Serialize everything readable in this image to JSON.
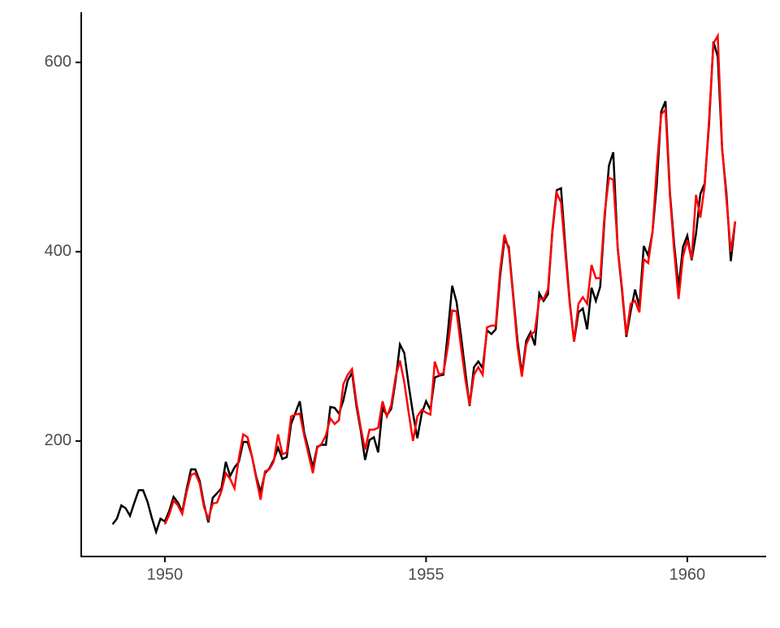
{
  "chart_data": {
    "type": "line",
    "xlim": [
      1948.4,
      1961.51
    ],
    "ylim": [
      78,
      653
    ],
    "xticks": [
      1950,
      1955,
      1960
    ],
    "yticks": [
      200,
      400,
      600
    ],
    "series": [
      {
        "color": "#000000",
        "x": [
          1949,
          1949.083,
          1949.167,
          1949.25,
          1949.333,
          1949.417,
          1949.5,
          1949.583,
          1949.667,
          1949.75,
          1949.833,
          1949.917,
          1950,
          1950.083,
          1950.167,
          1950.25,
          1950.333,
          1950.417,
          1950.5,
          1950.583,
          1950.667,
          1950.75,
          1950.833,
          1950.917,
          1951,
          1951.083,
          1951.167,
          1951.25,
          1951.333,
          1951.417,
          1951.5,
          1951.583,
          1951.667,
          1951.75,
          1951.833,
          1951.917,
          1952,
          1952.083,
          1952.167,
          1952.25,
          1952.333,
          1952.417,
          1952.5,
          1952.583,
          1952.667,
          1952.75,
          1952.833,
          1952.917,
          1953,
          1953.083,
          1953.167,
          1953.25,
          1953.333,
          1953.417,
          1953.5,
          1953.583,
          1953.667,
          1953.75,
          1953.833,
          1953.917,
          1954,
          1954.083,
          1954.167,
          1954.25,
          1954.333,
          1954.417,
          1954.5,
          1954.583,
          1954.667,
          1954.75,
          1954.833,
          1954.917,
          1955,
          1955.083,
          1955.167,
          1955.25,
          1955.333,
          1955.417,
          1955.5,
          1955.583,
          1955.667,
          1955.75,
          1955.833,
          1955.917,
          1956,
          1956.083,
          1956.167,
          1956.25,
          1956.333,
          1956.417,
          1956.5,
          1956.583,
          1956.667,
          1956.75,
          1956.833,
          1956.917,
          1957,
          1957.083,
          1957.167,
          1957.25,
          1957.333,
          1957.417,
          1957.5,
          1957.583,
          1957.667,
          1957.75,
          1957.833,
          1957.917,
          1958,
          1958.083,
          1958.167,
          1958.25,
          1958.333,
          1958.417,
          1958.5,
          1958.583,
          1958.667,
          1958.75,
          1958.833,
          1958.917,
          1959,
          1959.083,
          1959.167,
          1959.25,
          1959.333,
          1959.417,
          1959.5,
          1959.583,
          1959.667,
          1959.75,
          1959.833,
          1959.917,
          1960,
          1960.083,
          1960.167,
          1960.25,
          1960.333,
          1960.417,
          1960.5,
          1960.583,
          1960.667,
          1960.75,
          1960.833,
          1960.917
        ],
        "values": [
          112,
          118,
          132,
          129,
          121,
          135,
          148,
          148,
          136,
          119,
          104,
          118,
          115,
          126,
          141,
          135,
          125,
          149,
          170,
          170,
          158,
          133,
          114,
          140,
          145,
          150,
          178,
          163,
          172,
          178,
          199,
          199,
          184,
          162,
          146,
          166,
          171,
          180,
          193,
          181,
          183,
          218,
          230,
          242,
          209,
          191,
          172,
          194,
          196,
          196,
          236,
          235,
          229,
          243,
          264,
          272,
          237,
          211,
          180,
          201,
          204,
          188,
          235,
          227,
          234,
          264,
          302,
          293,
          259,
          229,
          203,
          229,
          242,
          233,
          267,
          269,
          270,
          315,
          364,
          347,
          312,
          274,
          237,
          278,
          284,
          277,
          317,
          313,
          318,
          374,
          413,
          405,
          355,
          306,
          271,
          306,
          315,
          301,
          356,
          348,
          355,
          422,
          465,
          467,
          404,
          347,
          305,
          336,
          340,
          318,
          362,
          348,
          363,
          435,
          491,
          505,
          404,
          359,
          310,
          337,
          360,
          342,
          406,
          396,
          420,
          472,
          548,
          559,
          463,
          407,
          362,
          405,
          417,
          391,
          419,
          461,
          472,
          535,
          622,
          606,
          508,
          461,
          390,
          432
        ]
      },
      {
        "color": "#ff0000",
        "x": [
          1950,
          1950.083,
          1950.167,
          1950.25,
          1950.333,
          1950.417,
          1950.5,
          1950.583,
          1950.667,
          1950.75,
          1950.833,
          1950.917,
          1951,
          1951.083,
          1951.167,
          1951.25,
          1951.333,
          1951.417,
          1951.5,
          1951.583,
          1951.667,
          1951.75,
          1951.833,
          1951.917,
          1952,
          1952.083,
          1952.167,
          1952.25,
          1952.333,
          1952.417,
          1952.5,
          1952.583,
          1952.667,
          1952.75,
          1952.833,
          1952.917,
          1953,
          1953.083,
          1953.167,
          1953.25,
          1953.333,
          1953.417,
          1953.5,
          1953.583,
          1953.667,
          1953.75,
          1953.833,
          1953.917,
          1954,
          1954.083,
          1954.167,
          1954.25,
          1954.333,
          1954.417,
          1954.5,
          1954.583,
          1954.667,
          1954.75,
          1954.833,
          1954.917,
          1955,
          1955.083,
          1955.167,
          1955.25,
          1955.333,
          1955.417,
          1955.5,
          1955.583,
          1955.667,
          1955.75,
          1955.833,
          1955.917,
          1956,
          1956.083,
          1956.167,
          1956.25,
          1956.333,
          1956.417,
          1956.5,
          1956.583,
          1956.667,
          1956.75,
          1956.833,
          1956.917,
          1957,
          1957.083,
          1957.167,
          1957.25,
          1957.333,
          1957.417,
          1957.5,
          1957.583,
          1957.667,
          1957.75,
          1957.833,
          1957.917,
          1958,
          1958.083,
          1958.167,
          1958.25,
          1958.333,
          1958.417,
          1958.5,
          1958.583,
          1958.667,
          1958.75,
          1958.833,
          1958.917,
          1959,
          1959.083,
          1959.167,
          1959.25,
          1959.333,
          1959.417,
          1959.5,
          1959.583,
          1959.667,
          1959.75,
          1959.833,
          1959.917,
          1960,
          1960.083,
          1960.167,
          1960.25,
          1960.333,
          1960.417,
          1960.5,
          1960.583,
          1960.667,
          1960.75,
          1960.833,
          1960.917
        ],
        "values": [
          112,
          122,
          137,
          132,
          123,
          146,
          164,
          166,
          155,
          130,
          118,
          134,
          135,
          147,
          166,
          160,
          150,
          182,
          207,
          204,
          184,
          160,
          138,
          168,
          170,
          178,
          207,
          186,
          188,
          226,
          228,
          229,
          206,
          186,
          166,
          193,
          197,
          206,
          224,
          218,
          222,
          260,
          270,
          276,
          241,
          214,
          191,
          212,
          212,
          214,
          242,
          226,
          238,
          268,
          285,
          262,
          230,
          200,
          226,
          233,
          230,
          228,
          284,
          270,
          272,
          300,
          338,
          337,
          300,
          266,
          238,
          270,
          278,
          270,
          320,
          322,
          322,
          380,
          418,
          402,
          352,
          300,
          268,
          302,
          312,
          316,
          350,
          350,
          360,
          420,
          462,
          452,
          398,
          345,
          305,
          345,
          352,
          345,
          386,
          372,
          372,
          440,
          478,
          476,
          405,
          362,
          312,
          345,
          348,
          336,
          392,
          388,
          420,
          490,
          545,
          550,
          460,
          400,
          350,
          395,
          412,
          392,
          460,
          436,
          470,
          540,
          620,
          628,
          510,
          455,
          400,
          432
        ]
      }
    ]
  }
}
